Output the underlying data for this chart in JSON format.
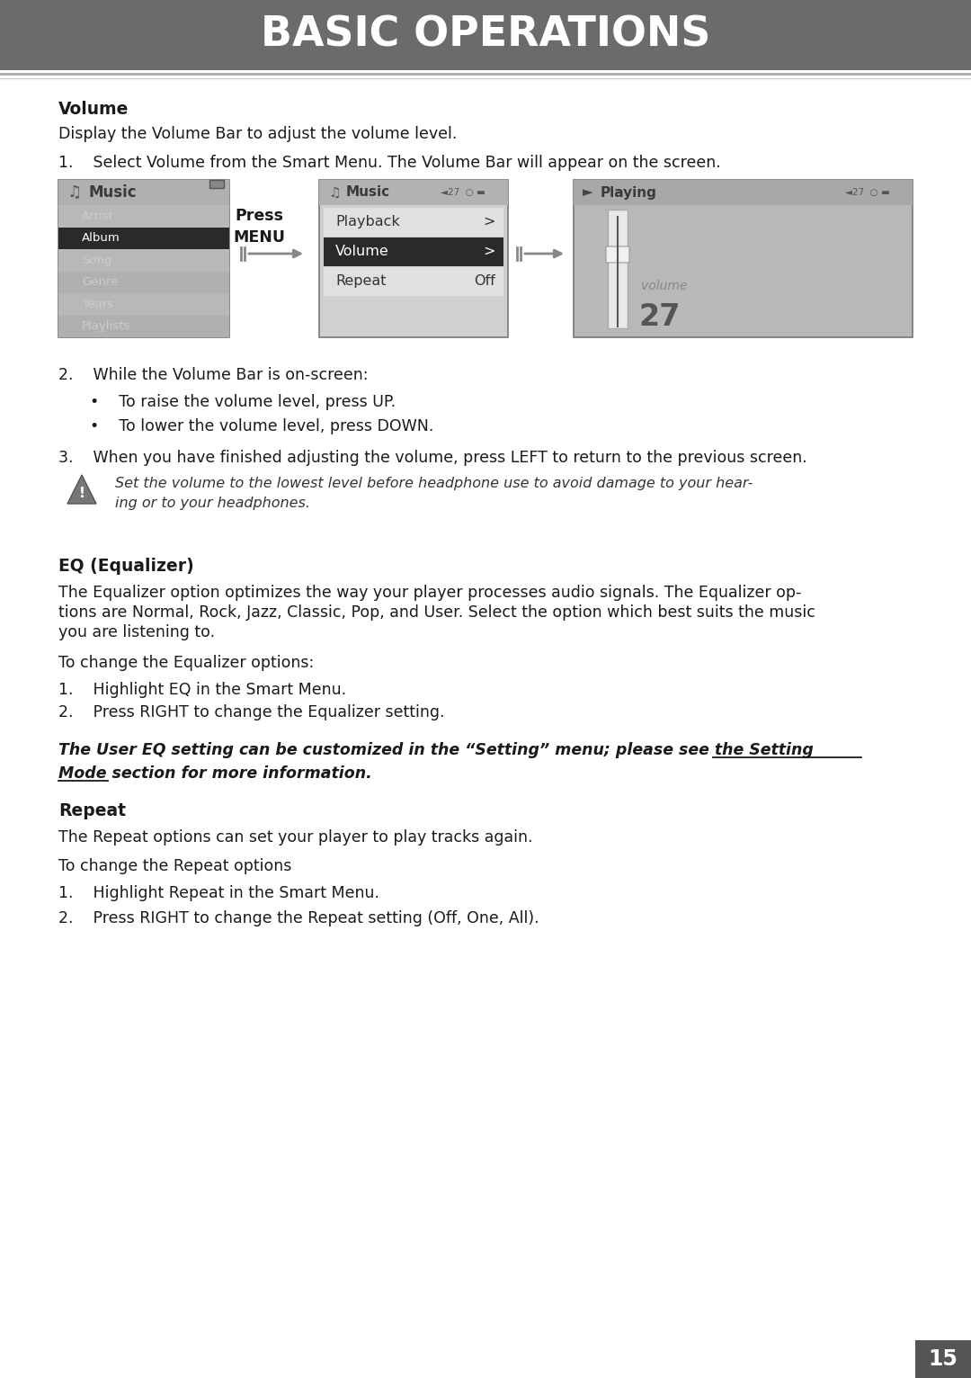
{
  "title": "BASIC OPERATIONS",
  "title_bg_color": "#6b6b6b",
  "title_text_color": "#ffffff",
  "page_bg_color": "#ffffff",
  "page_number": "15",
  "page_number_bg": "#555555",
  "page_number_color": "#ffffff",
  "content": {
    "volume_heading": "Volume",
    "volume_desc": "Display the Volume Bar to adjust the volume level.",
    "volume_step1": "1.    Select Volume from the Smart Menu. The Volume Bar will appear on the screen.",
    "volume_step2_header": "2.    While the Volume Bar is on-screen:",
    "volume_step2_bullet1": "•    To raise the volume level, press UP.",
    "volume_step2_bullet2": "•    To lower the volume level, press DOWN.",
    "volume_step3": "3.    When you have finished adjusting the volume, press LEFT to return to the previous screen.",
    "warning_line1": "Set the volume to the lowest level before headphone use to avoid damage to your hear-",
    "warning_line2": "ing or to your headphones.",
    "eq_heading": "EQ (Equalizer)",
    "eq_desc_line1": "The Equalizer option optimizes the way your player processes audio signals. The Equalizer op-",
    "eq_desc_line2": "tions are Normal, Rock, Jazz, Classic, Pop, and User. Select the option which best suits the music",
    "eq_desc_line3": "you are listening to.",
    "eq_desc2": "To change the Equalizer options:",
    "eq_step1": "1.    Highlight EQ in the Smart Menu.",
    "eq_step2": "2.    Press RIGHT to change the Equalizer setting.",
    "eq_note_line1_pre": "The User EQ setting can be customized in the “Setting” menu; please see the ",
    "eq_note_line1_ul": "Setting",
    "eq_note_line2_ul": "Mode",
    "eq_note_line2_post": " section for more information.",
    "repeat_heading": "Repeat",
    "repeat_desc": "The Repeat options can set your player to play tracks again.",
    "repeat_desc2": "To change the Repeat options",
    "repeat_step1": "1.    Highlight Repeat in the Smart Menu.",
    "repeat_step2": "2.    Press RIGHT to change the Repeat setting (Off, One, All)."
  },
  "screen1_menu_items": [
    "Artist",
    "Album",
    "Song",
    "Genre",
    "Years",
    "Playlists"
  ],
  "screen2_menu": [
    [
      "Playback",
      ">"
    ],
    [
      "Volume",
      ">"
    ],
    [
      "Repeat",
      "Off"
    ]
  ],
  "volume_number": "27",
  "press_menu_label": "Press\nMENU"
}
